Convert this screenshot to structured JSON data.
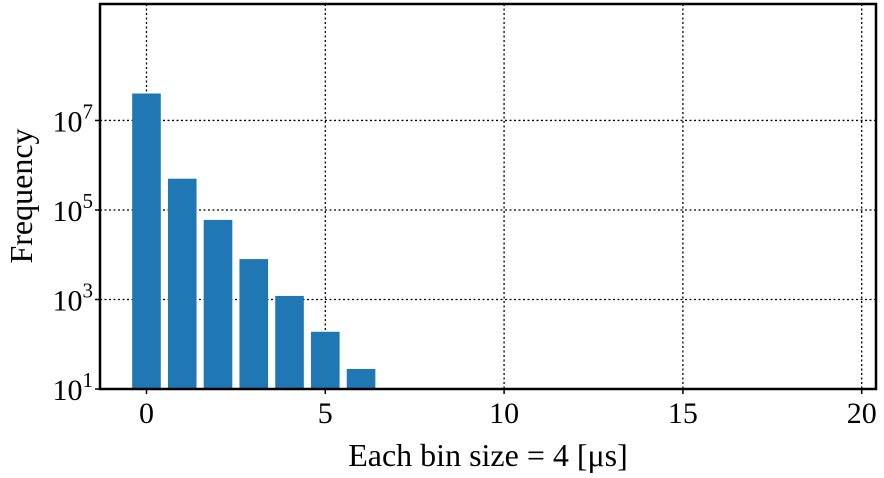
{
  "chart_data": {
    "type": "bar",
    "x": [
      0,
      1,
      2,
      3,
      4,
      5,
      6
    ],
    "values": [
      40000000,
      500000,
      60000,
      8000,
      1200,
      190,
      28
    ],
    "xlabel": "Each bin size = 4 [μs]",
    "ylabel": "Frequency",
    "xlim": [
      -1.3,
      20.4
    ],
    "ylim": [
      10,
      4000000000
    ],
    "yscale": "log",
    "grid": true,
    "bar_color": "#1f77b4",
    "x_ticks": [
      0,
      5,
      10,
      15,
      20
    ],
    "y_ticks": [
      {
        "value": 10,
        "base": "10",
        "exp": "1"
      },
      {
        "value": 1000,
        "base": "10",
        "exp": "3"
      },
      {
        "value": 100000,
        "base": "10",
        "exp": "5"
      },
      {
        "value": 10000000,
        "base": "10",
        "exp": "7"
      }
    ]
  }
}
